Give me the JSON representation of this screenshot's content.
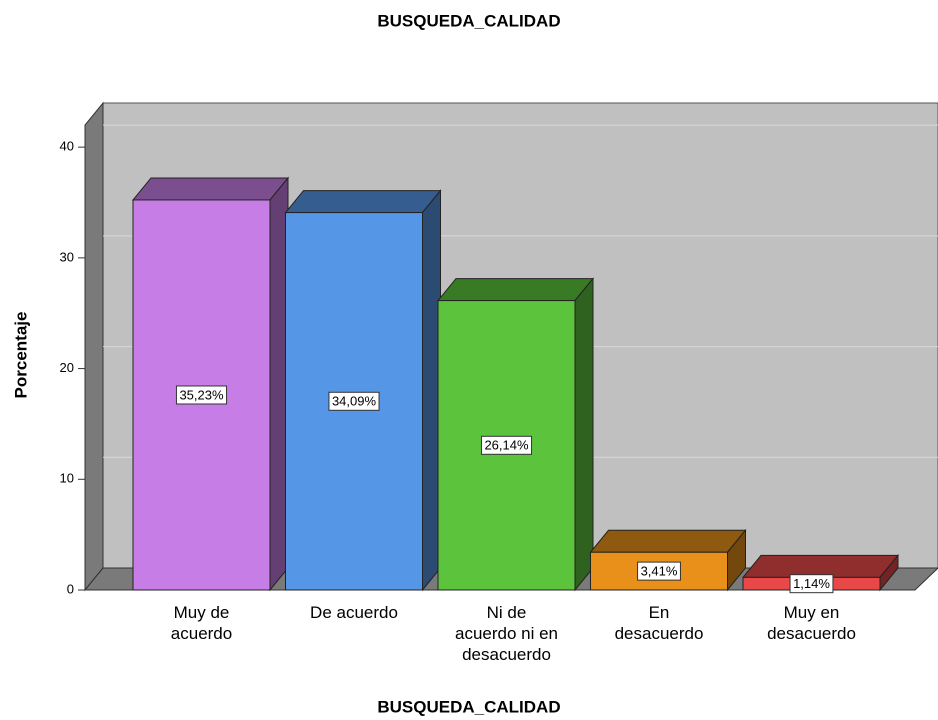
{
  "chart_data": {
    "type": "bar3d",
    "title": "BUSQUEDA_CALIDAD",
    "x_label": "BUSQUEDA_CALIDAD",
    "y_label": "Porcentaje",
    "categories": [
      "Muy de\nacuerdo",
      "De acuerdo",
      "Ni de\nacuerdo ni en\ndesacuerdo",
      "En\ndesacuerdo",
      "Muy en\ndesacuerdo"
    ],
    "values": [
      35.23,
      34.09,
      26.14,
      3.41,
      1.14
    ],
    "value_labels": [
      "35,23%",
      "34,09%",
      "26,14%",
      "3,41%",
      "1,14%"
    ],
    "colors": [
      "#c77de6",
      "#5596e6",
      "#5cc43c",
      "#e8901a",
      "#e84848"
    ],
    "ylim": [
      0,
      42
    ],
    "yticks": [
      0,
      10,
      20,
      30,
      40
    ],
    "grid": true
  }
}
